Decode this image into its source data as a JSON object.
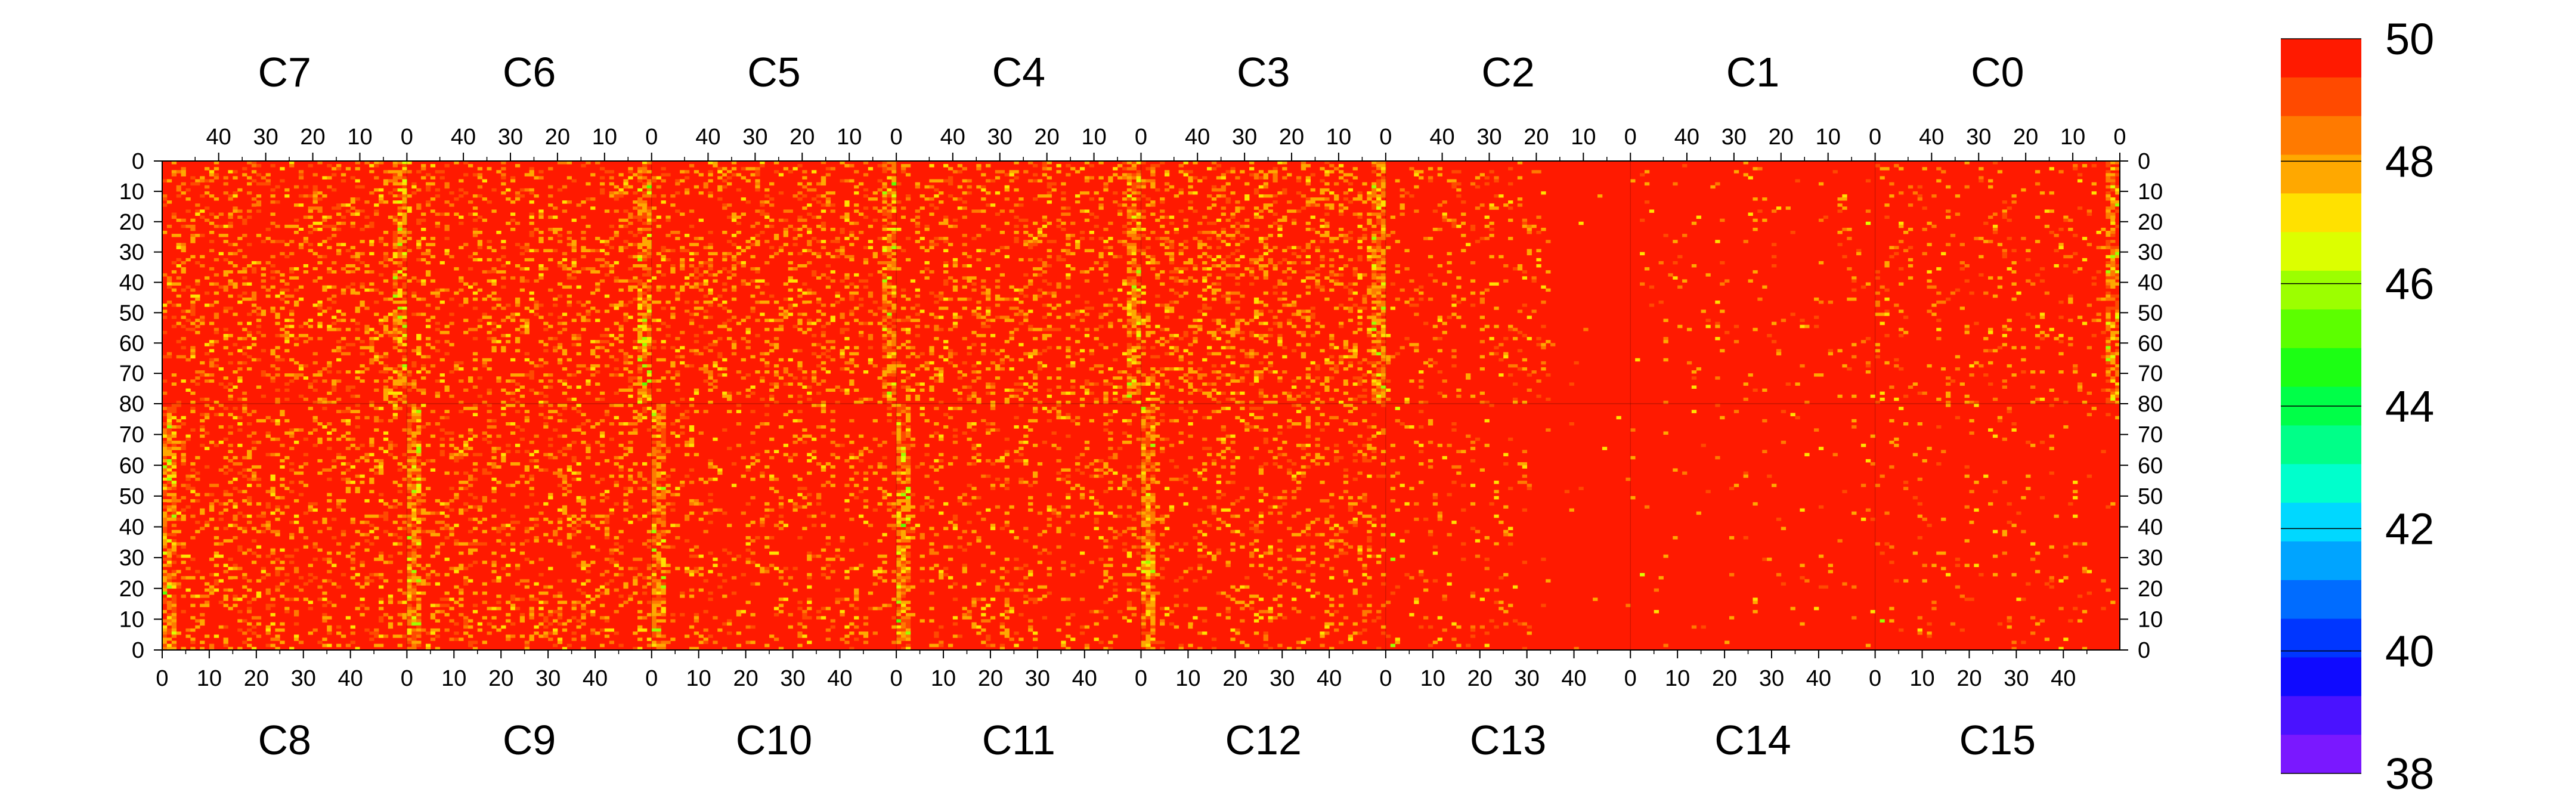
{
  "chart_data": {
    "type": "heatmap",
    "title": "",
    "xlabel": "",
    "ylabel": "",
    "top_chips": [
      "C7",
      "C6",
      "C5",
      "C4",
      "C3",
      "C2",
      "C1",
      "C0"
    ],
    "bottom_chips": [
      "C8",
      "C9",
      "C10",
      "C11",
      "C12",
      "C13",
      "C14",
      "C15"
    ],
    "top_x_tick_labels": [
      "40",
      "30",
      "20",
      "10",
      "0"
    ],
    "bottom_x_tick_labels": [
      "0",
      "10",
      "20",
      "30",
      "40"
    ],
    "y_tick_labels_top_half": [
      "0",
      "10",
      "20",
      "30",
      "40",
      "50",
      "60",
      "70",
      "80"
    ],
    "y_tick_labels_bottom_half": [
      "70",
      "60",
      "50",
      "40",
      "30",
      "20",
      "10",
      "0"
    ],
    "columns_per_chip": 52,
    "rows_per_half": 80,
    "zlim": [
      38,
      50
    ],
    "colorbar_tick_labels": [
      "50",
      "48",
      "46",
      "44",
      "42",
      "40",
      "38"
    ],
    "colorbar_colors": [
      "#ff1a00",
      "#ff4a00",
      "#ff7a00",
      "#ffa800",
      "#ffe100",
      "#dcff00",
      "#9cff00",
      "#5cff00",
      "#1cff14",
      "#00ff48",
      "#00ff88",
      "#00ffcc",
      "#00d8ff",
      "#00a4ff",
      "#006cff",
      "#0036ff",
      "#0f0aff",
      "#4a12ff",
      "#7a18ff"
    ],
    "background_value": 50,
    "hot_columns_description_values": {
      "hot_strip_min_value": 44,
      "typical_speckle_value": 48
    }
  }
}
